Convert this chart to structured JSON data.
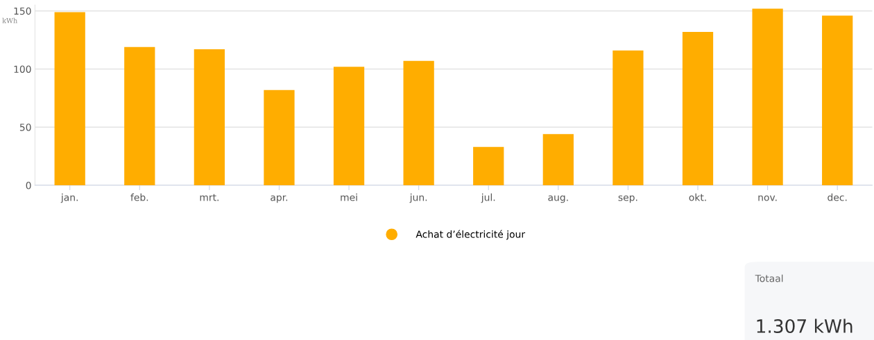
{
  "chart_data": {
    "type": "bar",
    "ylabel": "kWh",
    "categories": [
      "jan.",
      "feb.",
      "mrt.",
      "apr.",
      "mei",
      "jun.",
      "jul.",
      "aug.",
      "sep.",
      "okt.",
      "nov.",
      "dec."
    ],
    "series": [
      {
        "name": "Achat d’électricité jour",
        "color": "#ffad00",
        "values": [
          149,
          119,
          117,
          82,
          102,
          107,
          33,
          44,
          116,
          132,
          152,
          146
        ]
      }
    ],
    "ylim": [
      0,
      155
    ],
    "yticks": [
      0,
      50,
      100,
      150
    ],
    "grid": "y",
    "legend": "bottom",
    "annotations": [
      "Totaal",
      "1.307 kWh"
    ]
  }
}
